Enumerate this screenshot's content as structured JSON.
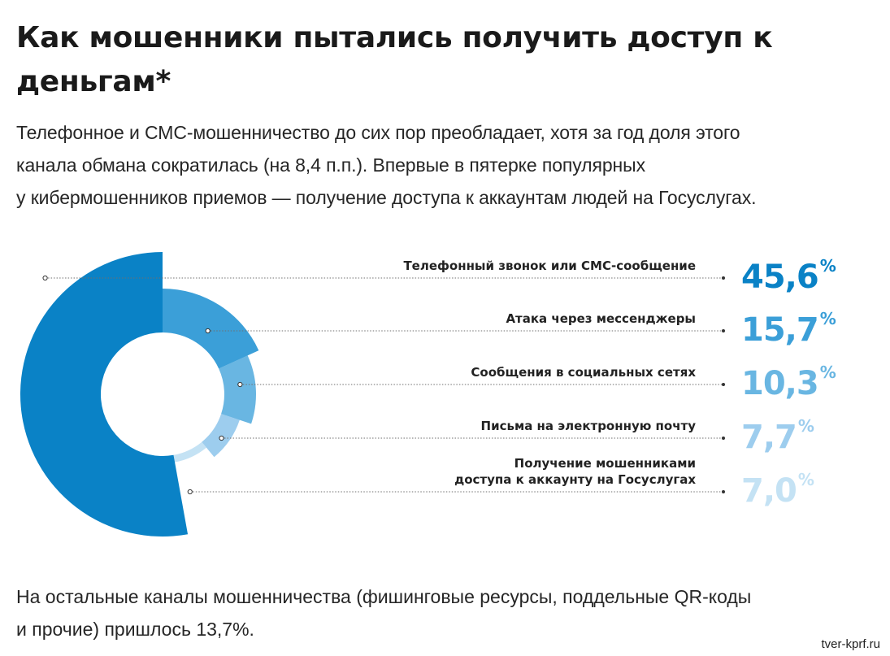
{
  "header": {
    "title": "Как мошенники пытались получить доступ к деньгам*"
  },
  "intro": {
    "lines": [
      "Телефонное и СМС-мошенничество до сих пор преобладает, хотя за год доля этого",
      "канала обмана сократилась (на 8,4 п.п.). Впервые в пятерке популярных",
      "у кибермошенников приемов — получение доступа к аккаунтам людей на Госуслугах."
    ]
  },
  "chart_data": {
    "type": "pie",
    "variant": "donut",
    "unit": "%",
    "categories": [
      [
        "Телефонный звонок или СМС-сообщение"
      ],
      [
        "Атака через мессенджеры"
      ],
      [
        "Сообщения в социальных сетях"
      ],
      [
        "Письма на электронную почту"
      ],
      [
        "Получение мошенниками",
        "доступа к аккаунту на Госуслугах"
      ]
    ],
    "values": [
      45.6,
      15.7,
      10.3,
      7.7,
      7.0
    ],
    "value_labels": [
      "45,6",
      "15,7",
      "10,3",
      "7,7",
      "7,0"
    ],
    "colors": [
      "#0a82c6",
      "#3b9fd8",
      "#69b6e2",
      "#9dcdee",
      "#c4e2f4"
    ],
    "legend": "right"
  },
  "outro": {
    "lines": [
      "На остальные каналы мошенничества (фишинговые ресурсы, поддельные QR-коды",
      "и прочие) пришлось 13,7%."
    ]
  },
  "watermark": "tver-kprf.ru"
}
